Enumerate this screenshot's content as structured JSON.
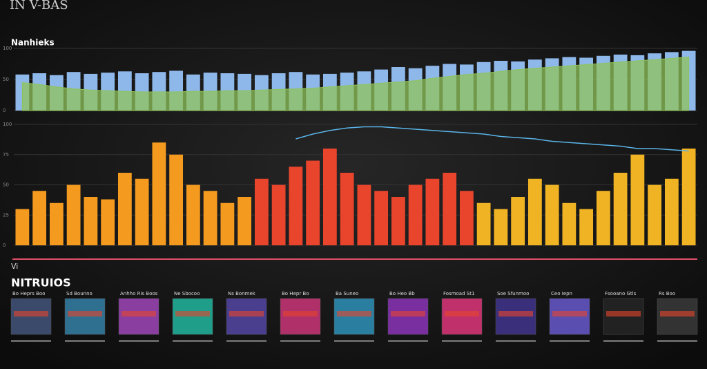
{
  "header": {
    "title": "IN V-BAS",
    "note": "Vi"
  },
  "chart_data": [
    {
      "type": "bar",
      "title": "Nanhieks",
      "ylim": [
        0,
        100
      ],
      "yticks": [
        0,
        50,
        100
      ],
      "grid": true,
      "categories": [
        null,
        null,
        null,
        null,
        null,
        null,
        null,
        null,
        null,
        null,
        null,
        null,
        null,
        null,
        null,
        null,
        null,
        null,
        null,
        null,
        null,
        null,
        null,
        null,
        null,
        null,
        null,
        null,
        null,
        null,
        null,
        null,
        null,
        null,
        null,
        null,
        null,
        null,
        null,
        null
      ],
      "series": [
        {
          "kind": "bar",
          "color": "#8fb8ea",
          "values": [
            58,
            60,
            57,
            62,
            59,
            61,
            63,
            60,
            62,
            64,
            58,
            61,
            60,
            59,
            57,
            60,
            62,
            58,
            59,
            61,
            63,
            66,
            70,
            68,
            72,
            75,
            74,
            78,
            80,
            79,
            82,
            84,
            86,
            85,
            88,
            90,
            89,
            92,
            94,
            96
          ]
        },
        {
          "kind": "area",
          "color": "#8fc35a",
          "values": [
            45,
            42,
            38,
            35,
            33,
            32,
            31,
            30,
            30,
            30,
            31,
            31,
            32,
            32,
            33,
            34,
            35,
            36,
            38,
            40,
            42,
            44,
            46,
            48,
            52,
            55,
            58,
            60,
            63,
            66,
            68,
            70,
            72,
            74,
            76,
            78,
            80,
            82,
            84,
            86
          ]
        }
      ]
    },
    {
      "type": "bar",
      "ylim": [
        0,
        100
      ],
      "yticks": [
        0,
        25,
        50,
        75,
        100
      ],
      "grid": true,
      "categories": [
        null,
        null,
        null,
        null,
        null,
        null,
        null,
        null,
        null,
        null,
        null,
        null,
        null,
        null,
        null,
        null,
        null,
        null,
        null,
        null,
        null,
        null,
        null,
        null,
        null,
        null,
        null,
        null,
        null,
        null,
        null,
        null,
        null,
        null,
        null,
        null,
        null,
        null,
        null,
        null
      ],
      "series": [
        {
          "kind": "bar",
          "colors": [
            "#f39a1f",
            "#e8452c",
            "#f0b323"
          ],
          "values": [
            30,
            45,
            35,
            50,
            40,
            38,
            60,
            55,
            85,
            75,
            50,
            45,
            35,
            40,
            55,
            50,
            65,
            70,
            80,
            60,
            50,
            45,
            40,
            50,
            55,
            60,
            45,
            35,
            30,
            40,
            55,
            50,
            35,
            30,
            45,
            60,
            75,
            50,
            55,
            80
          ]
        },
        {
          "kind": "line",
          "color": "#5ab4e8",
          "values": [
            null,
            null,
            null,
            null,
            null,
            null,
            null,
            null,
            null,
            null,
            null,
            null,
            null,
            null,
            null,
            null,
            88,
            92,
            95,
            97,
            98,
            98,
            97,
            96,
            95,
            94,
            93,
            92,
            90,
            89,
            88,
            86,
            85,
            84,
            83,
            82,
            80,
            80,
            79,
            78
          ]
        }
      ]
    }
  ],
  "panels": {
    "title": "NITRUIOS",
    "cards": [
      "Bo Heprs Boo",
      "Sd Bounno",
      "Anhho Ris Boos",
      "Ne Sbocoo",
      "Ns Bonmek",
      "Bo Hepr Bo",
      "Ba Suneo",
      "Bo Heo Bb",
      "Fosmoad St1",
      "Soe Sfunmoo",
      "Ceo Iepn",
      "Fsooano Gtls",
      "Rs Boo"
    ]
  }
}
